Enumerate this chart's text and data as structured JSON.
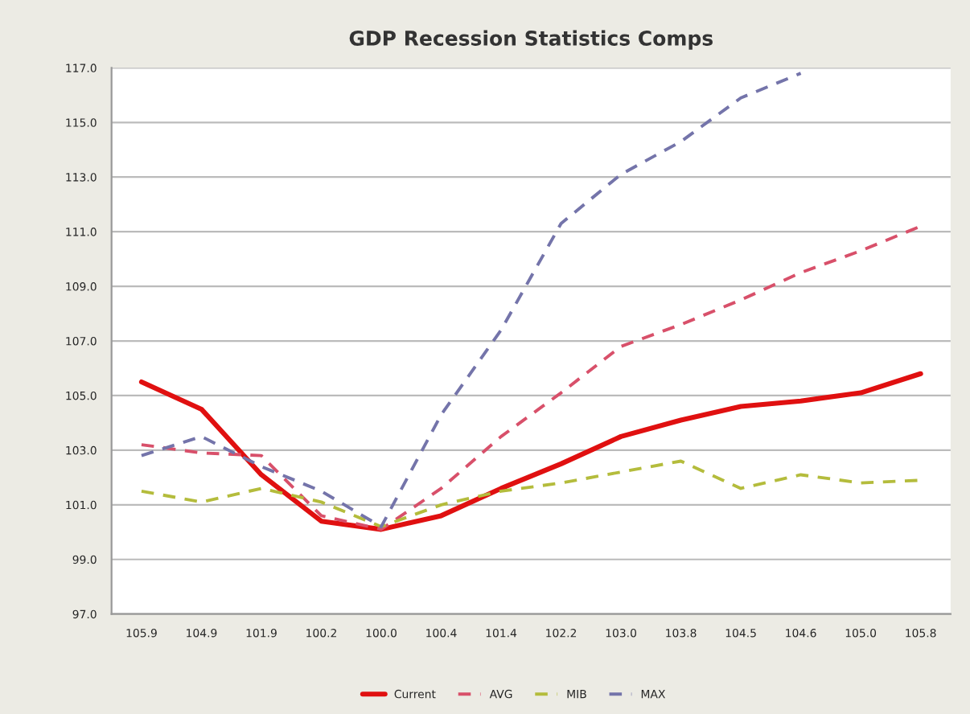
{
  "chart_data": {
    "type": "line",
    "title": "GDP Recession Statistics Comps",
    "categories": [
      "105.9",
      "104.9",
      "101.9",
      "100.2",
      "100.0",
      "100.4",
      "101.4",
      "102.2",
      "103.0",
      "103.8",
      "104.5",
      "104.6",
      "105.0",
      "105.8"
    ],
    "series": [
      {
        "name": "Current",
        "color": "#e01010",
        "line_style": "solid",
        "values": [
          105.5,
          104.5,
          102.1,
          100.4,
          100.1,
          100.6,
          101.6,
          102.5,
          103.5,
          104.1,
          104.6,
          104.8,
          105.1,
          105.8
        ]
      },
      {
        "name": "AVG",
        "color": "#d8506a",
        "line_style": "dashed",
        "values": [
          103.2,
          102.9,
          102.8,
          100.6,
          100.1,
          101.6,
          103.5,
          105.1,
          106.8,
          107.6,
          108.5,
          109.5,
          110.3,
          111.2
        ]
      },
      {
        "name": "MIB",
        "color": "#b4bc3c",
        "line_style": "dashed",
        "values": [
          101.5,
          101.1,
          101.6,
          101.1,
          100.2,
          101.0,
          101.5,
          101.8,
          102.2,
          102.6,
          101.6,
          102.1,
          101.8,
          101.9
        ]
      },
      {
        "name": "MAX",
        "color": "#7474aa",
        "line_style": "dashed",
        "values": [
          102.8,
          103.5,
          102.4,
          101.5,
          100.2,
          104.3,
          107.4,
          111.3,
          113.1,
          114.3,
          115.9,
          116.8,
          null,
          null
        ]
      }
    ],
    "ylim": [
      97.0,
      117.0
    ],
    "yticks": [
      {
        "value": 97,
        "label": "97.0"
      },
      {
        "value": 99,
        "label": "99.0"
      },
      {
        "value": 101,
        "label": "101.0"
      },
      {
        "value": 103,
        "label": "103.0"
      },
      {
        "value": 105,
        "label": "105.0"
      },
      {
        "value": 107,
        "label": "107.0"
      },
      {
        "value": 109,
        "label": "109.0"
      },
      {
        "value": 111,
        "label": "111.0"
      },
      {
        "value": 113,
        "label": "113.0"
      },
      {
        "value": 115,
        "label": "115.0"
      },
      {
        "value": 117,
        "label": "117.0"
      }
    ],
    "grid": "y",
    "legend": "bottom",
    "marker": "none"
  }
}
